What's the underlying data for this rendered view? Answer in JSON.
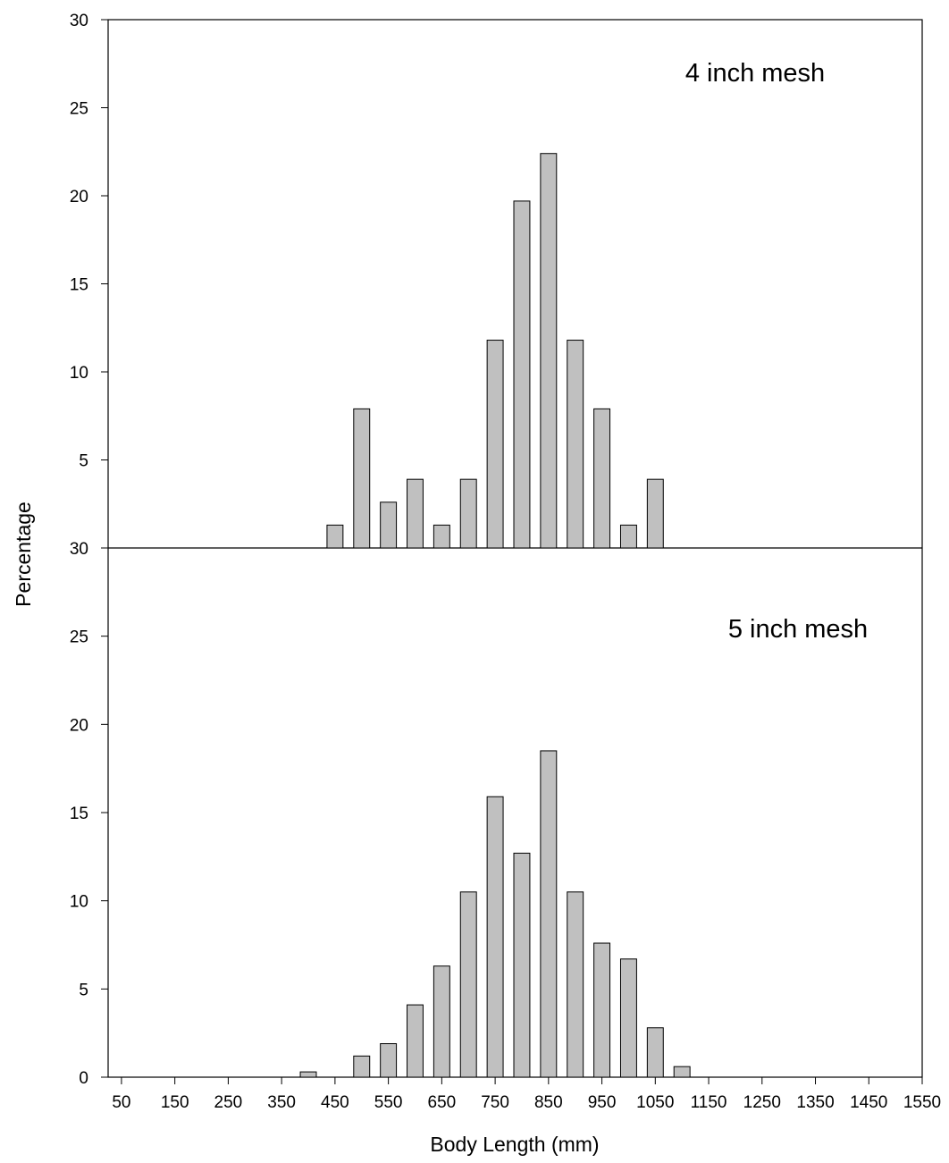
{
  "chart_data": [
    {
      "type": "bar",
      "panel": "top",
      "annotation": "4 inch mesh",
      "bin_centers": [
        450,
        500,
        550,
        600,
        650,
        700,
        750,
        800,
        850,
        900,
        950,
        1000,
        1050
      ],
      "values": [
        1.3,
        7.9,
        2.6,
        3.9,
        1.3,
        3.9,
        11.8,
        19.7,
        22.4,
        11.8,
        7.9,
        1.3,
        3.9
      ],
      "ylim": [
        0,
        30
      ],
      "yticks": [
        "5",
        "10",
        "15",
        "20",
        "25",
        "30"
      ],
      "bar_color": "#c0c0c0"
    },
    {
      "type": "bar",
      "panel": "bottom",
      "annotation": "5 inch mesh",
      "bin_centers": [
        400,
        450,
        500,
        550,
        600,
        650,
        700,
        750,
        800,
        850,
        900,
        950,
        1000,
        1050,
        1100
      ],
      "values": [
        0.3,
        0,
        1.2,
        1.9,
        4.1,
        6.3,
        10.5,
        15.9,
        12.7,
        18.5,
        10.5,
        7.6,
        6.7,
        2.8,
        0.6
      ],
      "ylim": [
        0,
        30
      ],
      "yticks": [
        "0",
        "5",
        "10",
        "15",
        "20",
        "25",
        "30"
      ],
      "bar_color": "#c0c0c0"
    }
  ],
  "axes": {
    "xlabel": "Body Length (mm)",
    "ylabel": "Percentage",
    "xlim": [
      25,
      1550
    ],
    "xticks": [
      50,
      150,
      250,
      350,
      450,
      550,
      650,
      750,
      850,
      950,
      1050,
      1150,
      1250,
      1350,
      1450,
      1550
    ],
    "bar_width": 30
  }
}
